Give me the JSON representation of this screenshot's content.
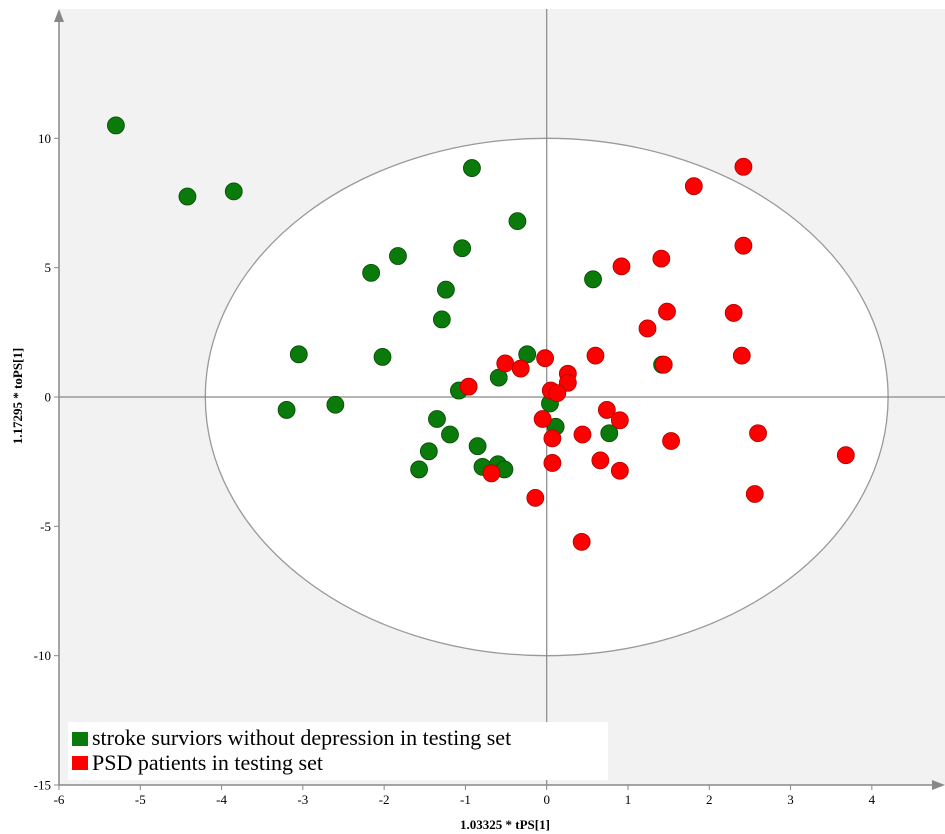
{
  "chart_data": {
    "type": "scatter",
    "xlabel": "1.03325 * tPS[1]",
    "ylabel": "1.17295 * toPS[1]",
    "xlim": [
      -6,
      4.9
    ],
    "ylim": [
      -15,
      15
    ],
    "xticks": [
      -6,
      -5,
      -4,
      -3,
      -2,
      -1,
      0,
      1,
      2,
      3,
      4
    ],
    "yticks": [
      -15,
      -10,
      -5,
      0,
      5,
      10
    ],
    "grid": false,
    "legend_position": "bottom-left",
    "ellipse": {
      "cx": 0,
      "cy": 0,
      "rx": 4.2,
      "ry": 10
    },
    "series": [
      {
        "name": "stroke surviors without depression in testing set",
        "color": "#0a7a0a",
        "points": [
          [
            -5.3,
            10.5
          ],
          [
            -4.42,
            7.75
          ],
          [
            -3.85,
            7.95
          ],
          [
            -0.92,
            8.85
          ],
          [
            -0.36,
            6.8
          ],
          [
            -1.04,
            5.75
          ],
          [
            -1.83,
            5.45
          ],
          [
            -2.16,
            4.8
          ],
          [
            -1.24,
            4.15
          ],
          [
            -1.29,
            3.0
          ],
          [
            0.57,
            4.55
          ],
          [
            -3.05,
            1.65
          ],
          [
            -2.02,
            1.55
          ],
          [
            -0.24,
            1.65
          ],
          [
            -0.59,
            0.75
          ],
          [
            -1.08,
            0.25
          ],
          [
            1.42,
            1.25
          ],
          [
            -3.2,
            -0.5
          ],
          [
            -2.6,
            -0.3
          ],
          [
            0.04,
            -0.25
          ],
          [
            -1.35,
            -0.85
          ],
          [
            0.11,
            -1.15
          ],
          [
            0.77,
            -1.4
          ],
          [
            -1.19,
            -1.45
          ],
          [
            -1.45,
            -2.1
          ],
          [
            -0.85,
            -1.9
          ],
          [
            -1.57,
            -2.8
          ],
          [
            -0.79,
            -2.7
          ],
          [
            -0.6,
            -2.6
          ],
          [
            -0.52,
            -2.8
          ]
        ]
      },
      {
        "name": "PSD patients in testing set",
        "color": "#ff0000",
        "points": [
          [
            2.42,
            8.9
          ],
          [
            1.81,
            8.15
          ],
          [
            2.42,
            5.85
          ],
          [
            1.41,
            5.35
          ],
          [
            0.92,
            5.05
          ],
          [
            1.48,
            3.3
          ],
          [
            2.3,
            3.25
          ],
          [
            1.24,
            2.65
          ],
          [
            0.6,
            1.6
          ],
          [
            2.4,
            1.6
          ],
          [
            1.44,
            1.25
          ],
          [
            -0.51,
            1.3
          ],
          [
            -0.02,
            1.5
          ],
          [
            -0.32,
            1.1
          ],
          [
            -0.96,
            0.4
          ],
          [
            0.26,
            0.9
          ],
          [
            0.26,
            0.55
          ],
          [
            0.05,
            0.25
          ],
          [
            0.13,
            0.15
          ],
          [
            0.74,
            -0.5
          ],
          [
            0.9,
            -0.9
          ],
          [
            -0.05,
            -0.85
          ],
          [
            0.07,
            -1.6
          ],
          [
            0.44,
            -1.45
          ],
          [
            1.53,
            -1.7
          ],
          [
            2.6,
            -1.4
          ],
          [
            3.68,
            -2.25
          ],
          [
            0.66,
            -2.45
          ],
          [
            0.07,
            -2.55
          ],
          [
            0.9,
            -2.85
          ],
          [
            -0.68,
            -2.95
          ],
          [
            -0.14,
            -3.9
          ],
          [
            2.56,
            -3.75
          ],
          [
            0.43,
            -5.6
          ]
        ]
      }
    ]
  }
}
